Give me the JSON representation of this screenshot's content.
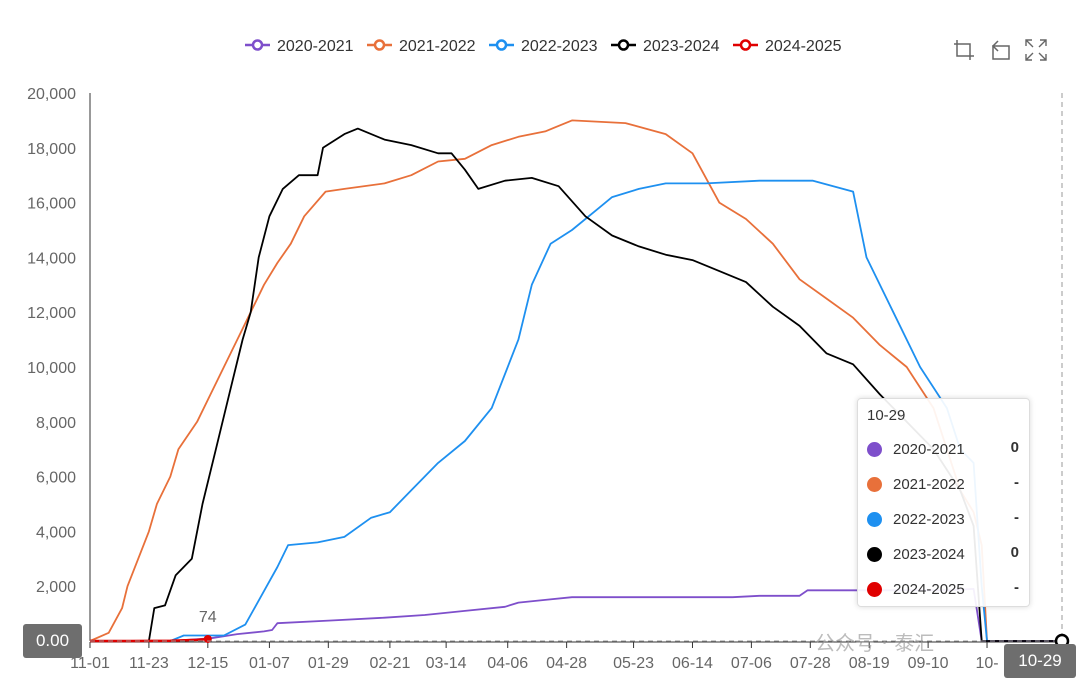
{
  "toolbox": {
    "zoom_icon": "zoom-icon",
    "restore_icon": "restore-icon",
    "fullscreen_icon": "fullscreen-icon"
  },
  "colors": {
    "s2020": "#7e4fcb",
    "s2021": "#e8703a",
    "s2022": "#1e90f0",
    "s2023": "#000000",
    "s2024": "#e00000"
  },
  "tooltip": {
    "title": "10-29",
    "rows": [
      {
        "name": "2020-2021",
        "value": "0",
        "color": "#7e4fcb"
      },
      {
        "name": "2021-2022",
        "value": "-",
        "color": "#e8703a"
      },
      {
        "name": "2022-2023",
        "value": "-",
        "color": "#1e90f0"
      },
      {
        "name": "2023-2024",
        "value": "0",
        "color": "#000000"
      },
      {
        "name": "2024-2025",
        "value": "-",
        "color": "#e00000"
      }
    ]
  },
  "axis_pointer": {
    "y_label": "0.00",
    "x_label": "10-29"
  },
  "watermark": "公众号 · 泰汇",
  "chart_data": {
    "type": "line",
    "title": "",
    "xlabel": "",
    "ylabel": "",
    "ylim": [
      0,
      20000
    ],
    "yticks": [
      0,
      2000,
      4000,
      6000,
      8000,
      10000,
      12000,
      14000,
      16000,
      18000,
      20000
    ],
    "ytick_labels": [
      "0",
      "2,000",
      "4,000",
      "6,000",
      "8,000",
      "10,000",
      "12,000",
      "14,000",
      "16,000",
      "18,000",
      "20,000"
    ],
    "x_range_days": [
      0,
      363
    ],
    "xticks": [
      {
        "label": "11-01",
        "day": 0
      },
      {
        "label": "11-23",
        "day": 22
      },
      {
        "label": "12-15",
        "day": 44
      },
      {
        "label": "01-07",
        "day": 67
      },
      {
        "label": "01-29",
        "day": 89
      },
      {
        "label": "02-21",
        "day": 112
      },
      {
        "label": "03-14",
        "day": 133
      },
      {
        "label": "04-06",
        "day": 156
      },
      {
        "label": "04-28",
        "day": 178
      },
      {
        "label": "05-23",
        "day": 203
      },
      {
        "label": "06-14",
        "day": 225
      },
      {
        "label": "07-06",
        "day": 247
      },
      {
        "label": "07-28",
        "day": 269
      },
      {
        "label": "08-19",
        "day": 291
      },
      {
        "label": "09-10",
        "day": 313
      },
      {
        "label": "10-",
        "day": 335
      }
    ],
    "legend_position": "top",
    "series": [
      {
        "name": "2020-2021",
        "color": "#7e4fcb",
        "points": [
          [
            0,
            0
          ],
          [
            30,
            0
          ],
          [
            45,
            100
          ],
          [
            55,
            250
          ],
          [
            65,
            350
          ],
          [
            68,
            400
          ],
          [
            70,
            650
          ],
          [
            90,
            750
          ],
          [
            110,
            850
          ],
          [
            125,
            950
          ],
          [
            140,
            1100
          ],
          [
            155,
            1250
          ],
          [
            160,
            1400
          ],
          [
            170,
            1500
          ],
          [
            180,
            1600
          ],
          [
            200,
            1600
          ],
          [
            240,
            1600
          ],
          [
            250,
            1650
          ],
          [
            265,
            1650
          ],
          [
            268,
            1850
          ],
          [
            290,
            1850
          ],
          [
            305,
            1850
          ],
          [
            320,
            1850
          ],
          [
            330,
            1900
          ],
          [
            333,
            0
          ],
          [
            363,
            0
          ]
        ]
      },
      {
        "name": "2021-2022",
        "color": "#e8703a",
        "points": [
          [
            0,
            0
          ],
          [
            7,
            300
          ],
          [
            12,
            1200
          ],
          [
            14,
            2000
          ],
          [
            18,
            3000
          ],
          [
            22,
            4000
          ],
          [
            25,
            5000
          ],
          [
            30,
            6000
          ],
          [
            33,
            7000
          ],
          [
            40,
            8000
          ],
          [
            45,
            9000
          ],
          [
            50,
            10000
          ],
          [
            55,
            11000
          ],
          [
            60,
            12000
          ],
          [
            65,
            13000
          ],
          [
            70,
            13800
          ],
          [
            75,
            14500
          ],
          [
            80,
            15500
          ],
          [
            88,
            16400
          ],
          [
            95,
            16500
          ],
          [
            110,
            16700
          ],
          [
            120,
            17000
          ],
          [
            130,
            17500
          ],
          [
            140,
            17600
          ],
          [
            150,
            18100
          ],
          [
            160,
            18400
          ],
          [
            170,
            18600
          ],
          [
            180,
            19000
          ],
          [
            200,
            18900
          ],
          [
            215,
            18500
          ],
          [
            225,
            17800
          ],
          [
            235,
            16000
          ],
          [
            245,
            15400
          ],
          [
            255,
            14500
          ],
          [
            265,
            13200
          ],
          [
            275,
            12500
          ],
          [
            285,
            11800
          ],
          [
            295,
            10800
          ],
          [
            305,
            10000
          ],
          [
            315,
            8500
          ],
          [
            320,
            7000
          ],
          [
            325,
            5500
          ],
          [
            330,
            4700
          ],
          [
            333,
            3500
          ],
          [
            335,
            0
          ]
        ]
      },
      {
        "name": "2022-2023",
        "color": "#1e90f0",
        "points": [
          [
            0,
            0
          ],
          [
            30,
            0
          ],
          [
            35,
            200
          ],
          [
            50,
            200
          ],
          [
            58,
            600
          ],
          [
            62,
            1300
          ],
          [
            66,
            2000
          ],
          [
            70,
            2700
          ],
          [
            74,
            3500
          ],
          [
            85,
            3600
          ],
          [
            95,
            3800
          ],
          [
            105,
            4500
          ],
          [
            112,
            4700
          ],
          [
            120,
            5500
          ],
          [
            130,
            6500
          ],
          [
            140,
            7300
          ],
          [
            150,
            8500
          ],
          [
            160,
            11000
          ],
          [
            165,
            13000
          ],
          [
            172,
            14500
          ],
          [
            180,
            15000
          ],
          [
            190,
            15800
          ],
          [
            195,
            16200
          ],
          [
            205,
            16500
          ],
          [
            215,
            16700
          ],
          [
            230,
            16700
          ],
          [
            250,
            16800
          ],
          [
            270,
            16800
          ],
          [
            285,
            16400
          ],
          [
            290,
            14000
          ],
          [
            300,
            12000
          ],
          [
            310,
            10000
          ],
          [
            320,
            8500
          ],
          [
            325,
            7000
          ],
          [
            330,
            6500
          ],
          [
            333,
            2000
          ],
          [
            335,
            0
          ]
        ]
      },
      {
        "name": "2023-2024",
        "color": "#000000",
        "points": [
          [
            0,
            0
          ],
          [
            22,
            0
          ],
          [
            24,
            1200
          ],
          [
            28,
            1300
          ],
          [
            32,
            2400
          ],
          [
            38,
            3000
          ],
          [
            42,
            5000
          ],
          [
            47,
            7000
          ],
          [
            52,
            9000
          ],
          [
            57,
            11000
          ],
          [
            60,
            12000
          ],
          [
            63,
            14000
          ],
          [
            67,
            15500
          ],
          [
            72,
            16500
          ],
          [
            78,
            17000
          ],
          [
            85,
            17000
          ],
          [
            87,
            18000
          ],
          [
            95,
            18500
          ],
          [
            100,
            18700
          ],
          [
            110,
            18300
          ],
          [
            120,
            18100
          ],
          [
            130,
            17800
          ],
          [
            135,
            17800
          ],
          [
            140,
            17200
          ],
          [
            145,
            16500
          ],
          [
            155,
            16800
          ],
          [
            165,
            16900
          ],
          [
            175,
            16600
          ],
          [
            185,
            15500
          ],
          [
            195,
            14800
          ],
          [
            205,
            14400
          ],
          [
            215,
            14100
          ],
          [
            225,
            13900
          ],
          [
            235,
            13500
          ],
          [
            245,
            13100
          ],
          [
            255,
            12200
          ],
          [
            265,
            11500
          ],
          [
            275,
            10500
          ],
          [
            285,
            10100
          ],
          [
            295,
            9000
          ],
          [
            305,
            8000
          ],
          [
            315,
            7000
          ],
          [
            325,
            5500
          ],
          [
            330,
            4200
          ],
          [
            333,
            0
          ],
          [
            363,
            0
          ]
        ]
      },
      {
        "name": "2024-2025",
        "color": "#e00000",
        "points": [
          [
            0,
            0
          ],
          [
            15,
            0
          ],
          [
            30,
            10
          ],
          [
            40,
            40
          ],
          [
            44,
            74
          ]
        ]
      }
    ],
    "annotations": [
      {
        "series": "2024-2025",
        "day": 44,
        "text": "74"
      }
    ]
  }
}
